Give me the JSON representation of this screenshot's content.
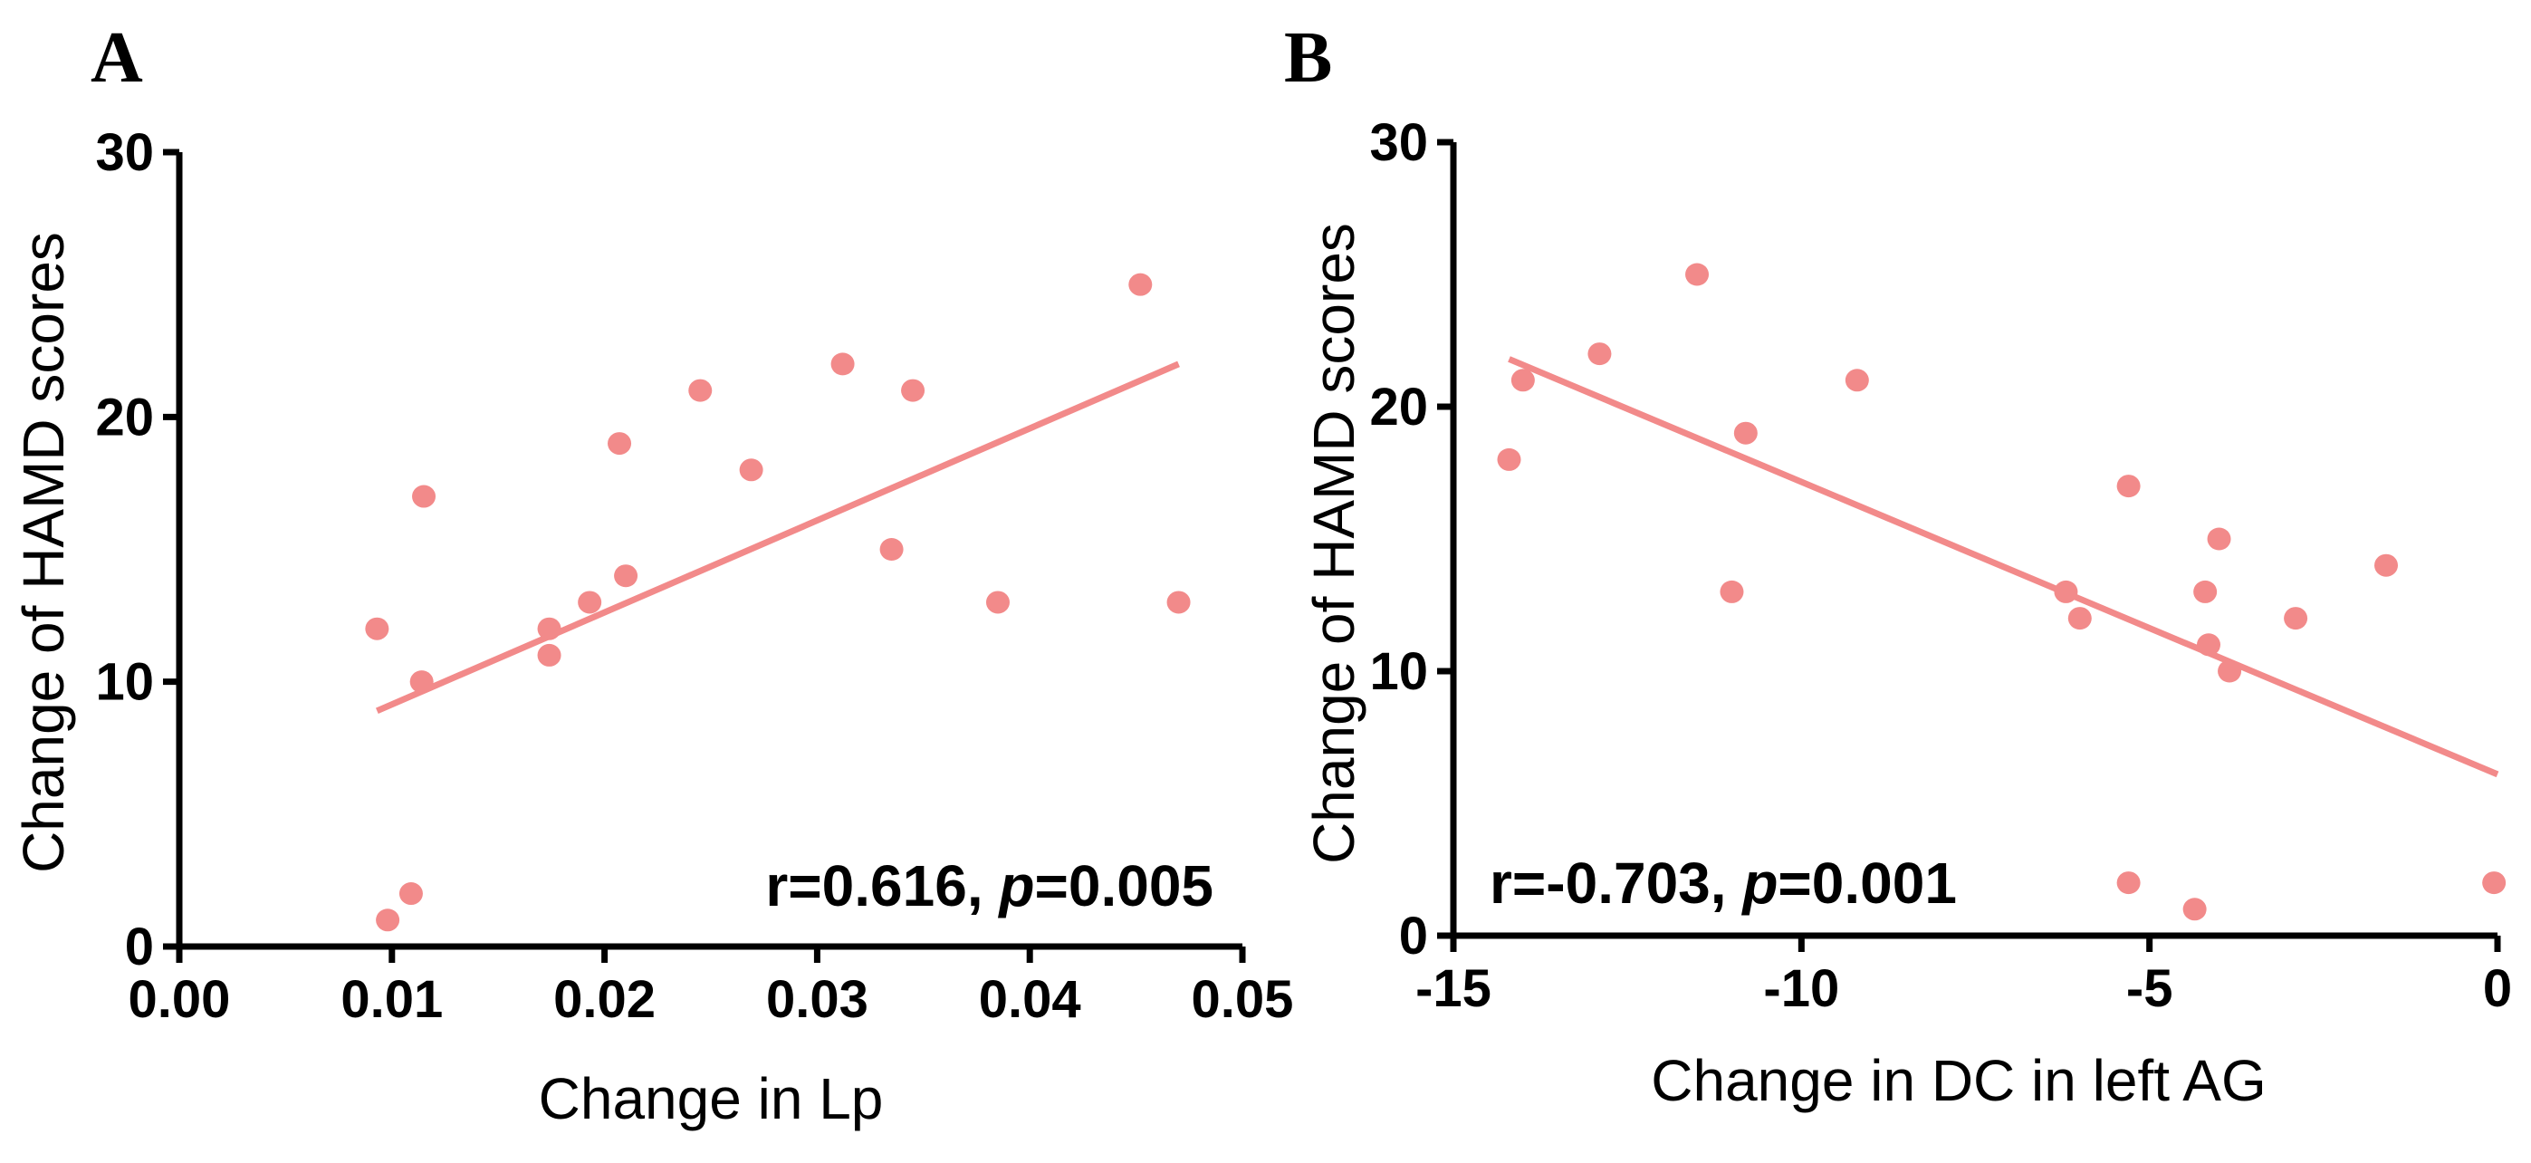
{
  "chart_data": [
    {
      "type": "scatter",
      "panel": "A",
      "xlabel": "Change in Lp",
      "ylabel": "Change of HAMD scores",
      "xlim": [
        0,
        0.05
      ],
      "ylim": [
        0,
        30
      ],
      "xticks": [
        "0.00",
        "0.01",
        "0.02",
        "0.03",
        "0.04",
        "0.05"
      ],
      "yticks": [
        "0",
        "10",
        "20",
        "30"
      ],
      "points": [
        {
          "x": 0.0093,
          "y": 12
        },
        {
          "x": 0.0098,
          "y": 1
        },
        {
          "x": 0.0109,
          "y": 2
        },
        {
          "x": 0.0114,
          "y": 10
        },
        {
          "x": 0.0115,
          "y": 17
        },
        {
          "x": 0.0174,
          "y": 12
        },
        {
          "x": 0.0174,
          "y": 11
        },
        {
          "x": 0.0193,
          "y": 13
        },
        {
          "x": 0.0207,
          "y": 19
        },
        {
          "x": 0.021,
          "y": 14
        },
        {
          "x": 0.0245,
          "y": 21
        },
        {
          "x": 0.0269,
          "y": 18
        },
        {
          "x": 0.0312,
          "y": 22
        },
        {
          "x": 0.0335,
          "y": 15
        },
        {
          "x": 0.0345,
          "y": 21
        },
        {
          "x": 0.0385,
          "y": 13
        },
        {
          "x": 0.0452,
          "y": 25
        },
        {
          "x": 0.047,
          "y": 13
        }
      ],
      "fit_line": {
        "x": [
          0.0093,
          0.047
        ],
        "y": [
          8.9,
          22.0
        ]
      },
      "annotation": {
        "r_text": "r=0.616, ",
        "p_label": "p",
        "p_text": "=0.005"
      },
      "point_color": "#f28a8a",
      "line_color": "#f28a8a"
    },
    {
      "type": "scatter",
      "panel": "B",
      "xlabel": "Change in DC in left AG",
      "ylabel": "Change of HAMD scores",
      "xlim": [
        -15,
        0
      ],
      "ylim": [
        0,
        30
      ],
      "xticks": [
        "-15",
        "-10",
        "-5",
        "0"
      ],
      "yticks": [
        "0",
        "10",
        "20",
        "30"
      ],
      "points": [
        {
          "x": -14.2,
          "y": 18
        },
        {
          "x": -14.0,
          "y": 21
        },
        {
          "x": -12.9,
          "y": 22
        },
        {
          "x": -11.5,
          "y": 25
        },
        {
          "x": -11.0,
          "y": 13
        },
        {
          "x": -10.8,
          "y": 19
        },
        {
          "x": -9.2,
          "y": 21
        },
        {
          "x": -6.2,
          "y": 13
        },
        {
          "x": -6.0,
          "y": 12
        },
        {
          "x": -5.3,
          "y": 17
        },
        {
          "x": -5.3,
          "y": 2
        },
        {
          "x": -4.35,
          "y": 1
        },
        {
          "x": -4.2,
          "y": 13
        },
        {
          "x": -4.15,
          "y": 11
        },
        {
          "x": -4.0,
          "y": 15
        },
        {
          "x": -3.85,
          "y": 10
        },
        {
          "x": -2.9,
          "y": 12
        },
        {
          "x": -1.6,
          "y": 14
        },
        {
          "x": -0.05,
          "y": 2
        }
      ],
      "fit_line": {
        "x": [
          -14.2,
          0
        ],
        "y": [
          21.8,
          6.1
        ]
      },
      "annotation": {
        "r_text": "r=-0.703, ",
        "p_label": "p",
        "p_text": "=0.001"
      },
      "point_color": "#f28a8a",
      "line_color": "#f28a8a"
    }
  ]
}
